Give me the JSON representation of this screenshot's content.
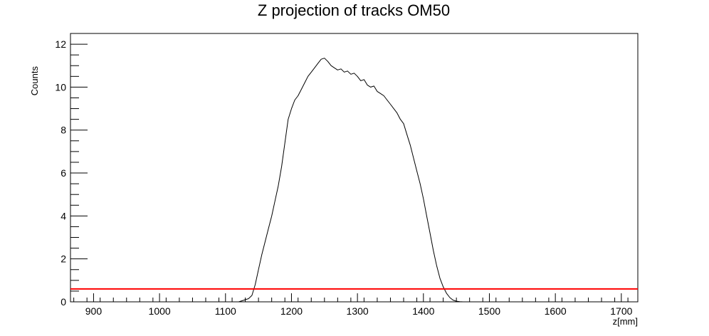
{
  "chart_data": {
    "type": "line",
    "title": "Z projection of tracks OM50",
    "xlabel": "z[mm]",
    "ylabel": "Counts",
    "xlim": [
      865,
      1725
    ],
    "ylim": [
      0,
      12.5
    ],
    "x_ticks": [
      900,
      1000,
      1100,
      1200,
      1300,
      1400,
      1500,
      1600,
      1700
    ],
    "y_ticks": [
      0,
      2,
      4,
      6,
      8,
      10,
      12
    ],
    "x_tick_labels": [
      "900",
      "1000",
      "1100",
      "1200",
      "1300",
      "1400",
      "1500",
      "1600",
      "1700"
    ],
    "y_tick_labels": [
      "0",
      "2",
      "4",
      "6",
      "8",
      "10",
      "12"
    ],
    "grid": false,
    "legend": "none",
    "series": [
      {
        "color": "#000000",
        "x": [
          1120,
          1125,
          1130,
          1135,
          1140,
          1145,
          1150,
          1155,
          1160,
          1165,
          1170,
          1175,
          1180,
          1185,
          1190,
          1195,
          1200,
          1205,
          1210,
          1215,
          1220,
          1225,
          1230,
          1235,
          1240,
          1245,
          1250,
          1255,
          1260,
          1265,
          1270,
          1275,
          1280,
          1285,
          1290,
          1295,
          1300,
          1305,
          1310,
          1315,
          1320,
          1325,
          1330,
          1335,
          1340,
          1345,
          1350,
          1355,
          1360,
          1365,
          1370,
          1375,
          1380,
          1385,
          1390,
          1395,
          1400,
          1405,
          1410,
          1415,
          1420,
          1425,
          1430,
          1435,
          1440,
          1445,
          1450,
          1455,
          1460,
          1465,
          1470,
          1475
        ],
        "y": [
          0.0,
          0.05,
          0.1,
          0.15,
          0.3,
          0.8,
          1.5,
          2.2,
          2.8,
          3.4,
          4.0,
          4.7,
          5.4,
          6.3,
          7.4,
          8.5,
          9.0,
          9.4,
          9.6,
          9.9,
          10.2,
          10.5,
          10.7,
          10.9,
          11.1,
          11.3,
          11.35,
          11.2,
          11.0,
          10.9,
          10.8,
          10.85,
          10.7,
          10.75,
          10.6,
          10.65,
          10.5,
          10.3,
          10.35,
          10.1,
          10.0,
          10.05,
          9.8,
          9.7,
          9.6,
          9.4,
          9.2,
          9.0,
          8.8,
          8.5,
          8.3,
          7.8,
          7.3,
          6.7,
          6.1,
          5.5,
          4.8,
          4.0,
          3.2,
          2.4,
          1.7,
          1.1,
          0.7,
          0.4,
          0.2,
          0.08,
          0.03,
          0.01,
          0.0,
          0.0,
          0.0,
          0.0
        ]
      },
      {
        "color": "#ff0000",
        "x": [
          865,
          1725
        ],
        "y": [
          0.6,
          0.6
        ]
      }
    ]
  }
}
